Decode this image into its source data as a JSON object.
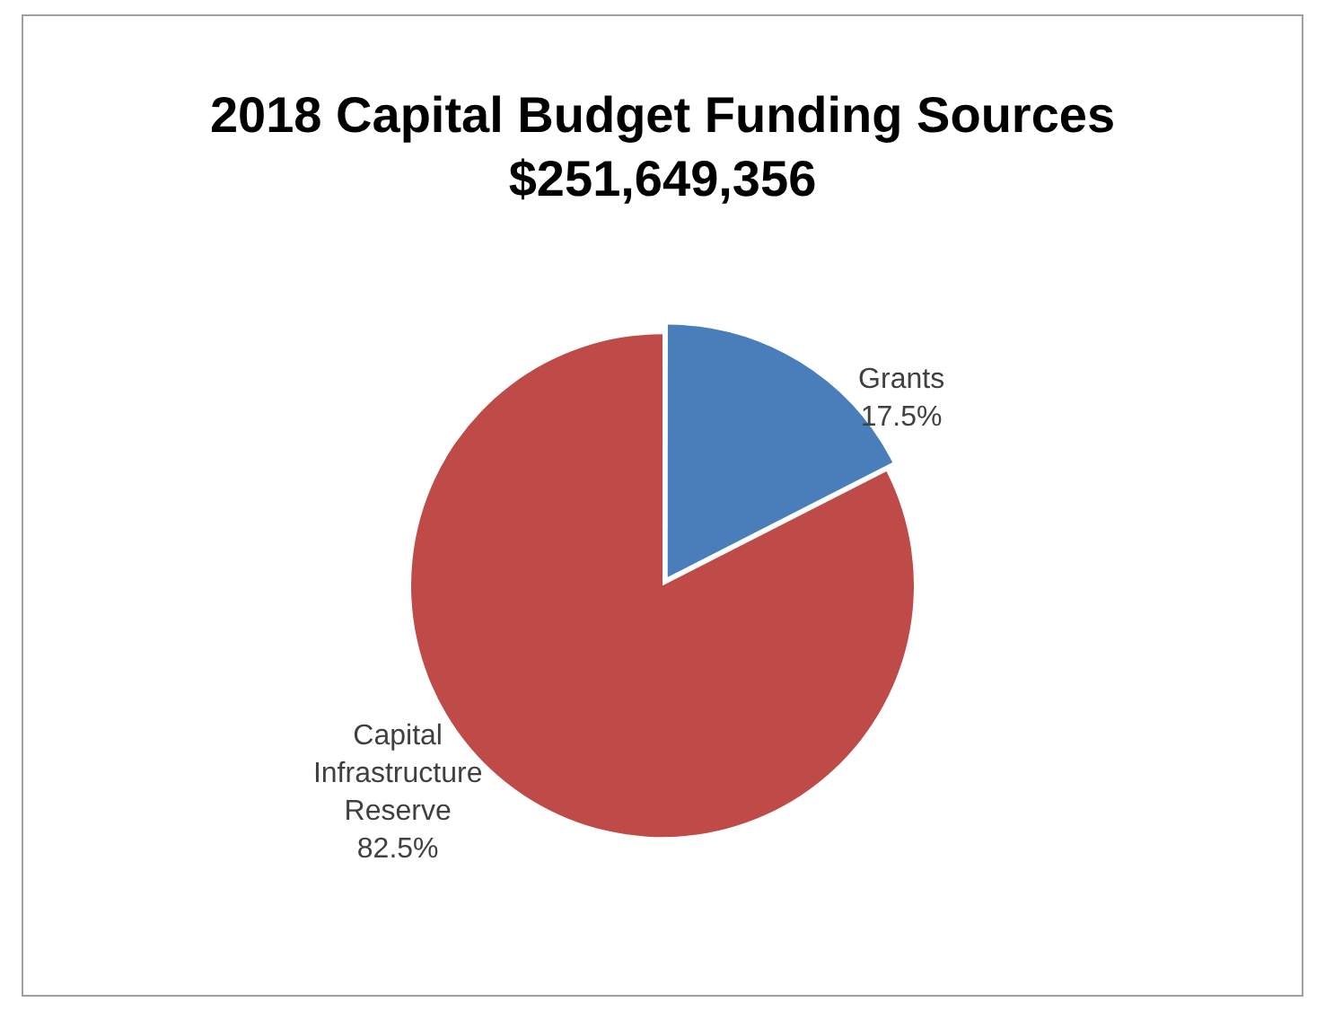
{
  "chart_data": {
    "type": "pie",
    "title": "2018 Capital Budget Funding Sources",
    "subtitle": "$251,649,356",
    "categories": [
      "Grants",
      "Capital Infrastructure Reserve"
    ],
    "values": [
      17.5,
      82.5
    ],
    "colors": [
      "#4a7ebb",
      "#be4b48"
    ],
    "value_labels": [
      "17.5%",
      "82.5%"
    ],
    "legend": false
  }
}
